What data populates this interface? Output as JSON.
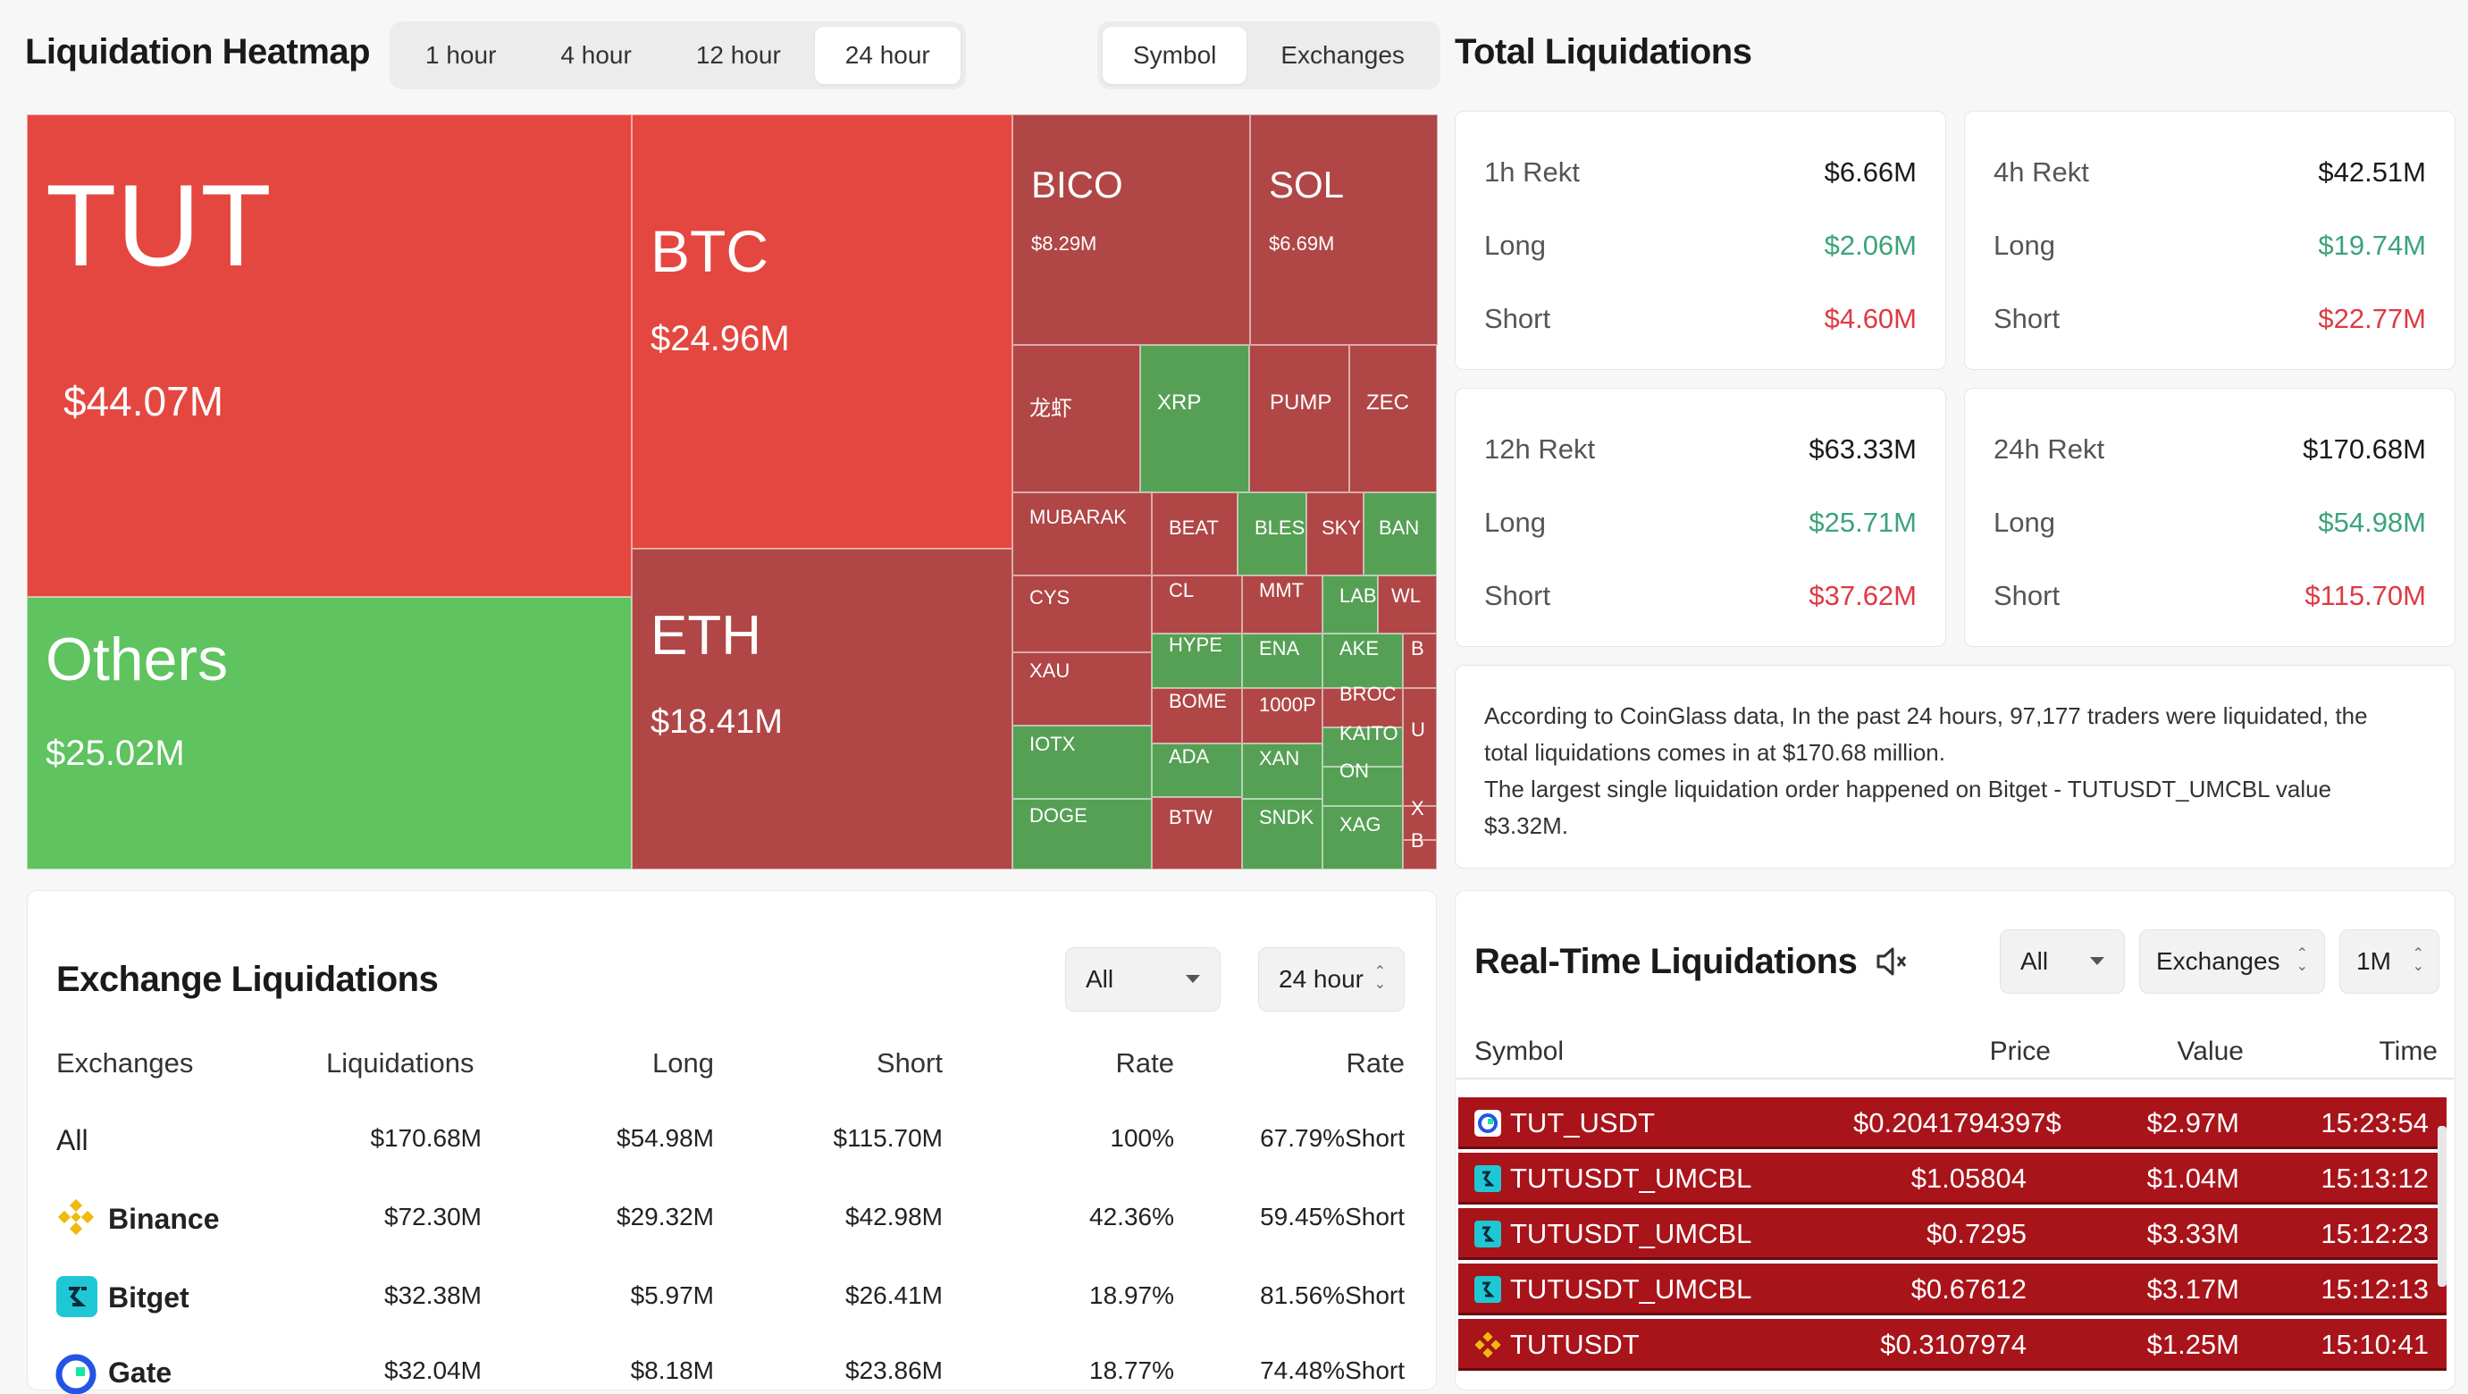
{
  "heatmap": {
    "title": "Liquidation Heatmap",
    "time_tabs": [
      "1 hour",
      "4 hour",
      "12 hour",
      "24 hour"
    ],
    "active_time_tab": "24 hour",
    "view_tabs": [
      "Symbol",
      "Exchanges"
    ],
    "active_view_tab": "Symbol",
    "colors": {
      "red": "#e4473f",
      "dark_red": "#b04646",
      "green": "#5fc35f",
      "dark_green": "#55a055"
    },
    "tiles": [
      {
        "symbol": "TUT",
        "value": "$44.07M"
      },
      {
        "symbol": "Others",
        "value": "$25.02M"
      },
      {
        "symbol": "BTC",
        "value": "$24.96M"
      },
      {
        "symbol": "ETH",
        "value": "$18.41M"
      },
      {
        "symbol": "BICO",
        "value": "$8.29M"
      },
      {
        "symbol": "SOL",
        "value": "$6.69M"
      },
      {
        "symbol": "龙虾",
        "value": ""
      },
      {
        "symbol": "XRP",
        "value": ""
      },
      {
        "symbol": "PUMP",
        "value": ""
      },
      {
        "symbol": "ZEC",
        "value": ""
      },
      {
        "symbol": "MUBARAK",
        "value": ""
      },
      {
        "symbol": "BEAT",
        "value": ""
      },
      {
        "symbol": "BLES",
        "value": ""
      },
      {
        "symbol": "SKY",
        "value": ""
      },
      {
        "symbol": "BAN",
        "value": ""
      },
      {
        "symbol": "CYS",
        "value": ""
      },
      {
        "symbol": "CL",
        "value": ""
      },
      {
        "symbol": "MMT",
        "value": ""
      },
      {
        "symbol": "LAB",
        "value": ""
      },
      {
        "symbol": "WL",
        "value": ""
      },
      {
        "symbol": "HYPE",
        "value": ""
      },
      {
        "symbol": "ENA",
        "value": ""
      },
      {
        "symbol": "AKE",
        "value": ""
      },
      {
        "symbol": "B",
        "value": ""
      },
      {
        "symbol": "XAU",
        "value": ""
      },
      {
        "symbol": "BOME",
        "value": ""
      },
      {
        "symbol": "1000P",
        "value": ""
      },
      {
        "symbol": "BROC",
        "value": ""
      },
      {
        "symbol": "IOTX",
        "value": ""
      },
      {
        "symbol": "ADA",
        "value": ""
      },
      {
        "symbol": "XAN",
        "value": ""
      },
      {
        "symbol": "KAITO",
        "value": ""
      },
      {
        "symbol": "U",
        "value": ""
      },
      {
        "symbol": "ON",
        "value": ""
      },
      {
        "symbol": "X",
        "value": ""
      },
      {
        "symbol": "DOGE",
        "value": ""
      },
      {
        "symbol": "BTW",
        "value": ""
      },
      {
        "symbol": "SNDK",
        "value": ""
      },
      {
        "symbol": "XAG",
        "value": ""
      },
      {
        "symbol": "B",
        "value": ""
      }
    ]
  },
  "total": {
    "title": "Total Liquidations",
    "cards": [
      {
        "label": "1h Rekt",
        "total": "$6.66M",
        "long_label": "Long",
        "long": "$2.06M",
        "short_label": "Short",
        "short": "$4.60M"
      },
      {
        "label": "4h Rekt",
        "total": "$42.51M",
        "long_label": "Long",
        "long": "$19.74M",
        "short_label": "Short",
        "short": "$22.77M"
      },
      {
        "label": "12h Rekt",
        "total": "$63.33M",
        "long_label": "Long",
        "long": "$25.71M",
        "short_label": "Short",
        "short": "$37.62M"
      },
      {
        "label": "24h Rekt",
        "total": "$170.68M",
        "long_label": "Long",
        "long": "$54.98M",
        "short_label": "Short",
        "short": "$115.70M"
      }
    ],
    "summary_line1": "According to CoinGlass data, In the past 24 hours, 97,177 traders were liquidated, the",
    "summary_line2": "total liquidations comes in at $170.68 million.",
    "summary_line3": "The largest single liquidation order happened on Bitget - TUTUSDT_UMCBL value",
    "summary_line4": "$3.32M."
  },
  "exchange": {
    "title": "Exchange Liquidations",
    "filter_value": "All",
    "time_value": "24 hour",
    "headers": [
      "Exchanges",
      "Liquidations",
      "Long",
      "Short",
      "Rate",
      "Rate"
    ],
    "rows": [
      {
        "name": "All",
        "liq": "$170.68M",
        "long": "$54.98M",
        "short": "$115.70M",
        "rate": "100%",
        "rate2": "67.79%Short",
        "icon": "none"
      },
      {
        "name": "Binance",
        "liq": "$72.30M",
        "long": "$29.32M",
        "short": "$42.98M",
        "rate": "42.36%",
        "rate2": "59.45%Short",
        "icon": "binance-icon"
      },
      {
        "name": "Bitget",
        "liq": "$32.38M",
        "long": "$5.97M",
        "short": "$26.41M",
        "rate": "18.97%",
        "rate2": "81.56%Short",
        "icon": "bitget-icon"
      },
      {
        "name": "Gate",
        "liq": "$32.04M",
        "long": "$8.18M",
        "short": "$23.86M",
        "rate": "18.77%",
        "rate2": "74.48%Short",
        "icon": "gate-icon"
      }
    ]
  },
  "realtime": {
    "title": "Real-Time Liquidations",
    "filter_value": "All",
    "exchanges_value": "Exchanges",
    "interval_value": "1M",
    "headers": [
      "Symbol",
      "Price",
      "Value",
      "Time"
    ],
    "rows": [
      {
        "symbol": "TUT_USDT",
        "price": "$0.2041794397$",
        "value": "$2.97M",
        "time": "15:23:54",
        "icon": "exchange-c-icon"
      },
      {
        "symbol": "TUTUSDT_UMCBL",
        "price": "$1.05804",
        "value": "$1.04M",
        "time": "15:13:12",
        "icon": "bitget-icon"
      },
      {
        "symbol": "TUTUSDT_UMCBL",
        "price": "$0.7295",
        "value": "$3.33M",
        "time": "15:12:23",
        "icon": "bitget-icon"
      },
      {
        "symbol": "TUTUSDT_UMCBL",
        "price": "$0.67612",
        "value": "$3.17M",
        "time": "15:12:13",
        "icon": "bitget-icon"
      },
      {
        "symbol": "TUTUSDT",
        "price": "$0.3107974",
        "value": "$1.25M",
        "time": "15:10:41",
        "icon": "binance-icon"
      }
    ]
  }
}
